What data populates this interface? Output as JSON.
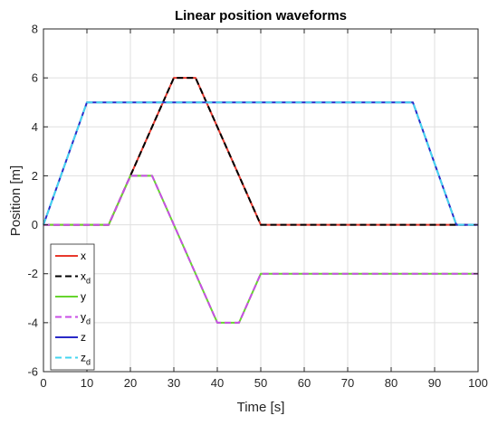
{
  "chart_data": {
    "type": "line",
    "title": "Linear position waveforms",
    "xlabel": "Time [s]",
    "ylabel": "Position [m]",
    "xlim": [
      0,
      100
    ],
    "ylim": [
      -6,
      8
    ],
    "xticks": [
      0,
      10,
      20,
      30,
      40,
      50,
      60,
      70,
      80,
      90,
      100
    ],
    "yticks": [
      -6,
      -4,
      -2,
      0,
      2,
      4,
      6,
      8
    ],
    "grid": true,
    "legend_position": "bottom-left",
    "series": [
      {
        "name": "x",
        "color": "#e8382c",
        "dash": "solid",
        "x": [
          0,
          15,
          20,
          30,
          35,
          50,
          100
        ],
        "y": [
          0,
          0,
          2,
          6,
          6,
          0,
          0
        ]
      },
      {
        "name": "x",
        "subscript": "d",
        "color": "#000000",
        "dash": "dashed",
        "x": [
          0,
          15,
          20,
          30,
          35,
          50,
          100
        ],
        "y": [
          0,
          0,
          2,
          6,
          6,
          0,
          0
        ]
      },
      {
        "name": "y",
        "color": "#66d42e",
        "dash": "solid",
        "x": [
          0,
          15,
          20,
          25,
          40,
          45,
          50,
          100
        ],
        "y": [
          0,
          0,
          2,
          2,
          -4,
          -4,
          -2,
          -2
        ]
      },
      {
        "name": "y",
        "subscript": "d",
        "color": "#c84ee6",
        "dash": "dashed",
        "x": [
          0,
          15,
          20,
          25,
          40,
          45,
          50,
          100
        ],
        "y": [
          0,
          0,
          2,
          2,
          -4,
          -4,
          -2,
          -2
        ]
      },
      {
        "name": "z",
        "color": "#2929c7",
        "dash": "solid",
        "x": [
          0,
          10,
          85,
          95,
          100
        ],
        "y": [
          0,
          5,
          5,
          0,
          0
        ]
      },
      {
        "name": "z",
        "subscript": "d",
        "color": "#44d5f0",
        "dash": "dashed",
        "x": [
          0,
          10,
          85,
          95,
          100
        ],
        "y": [
          0,
          5,
          5,
          0,
          0
        ]
      }
    ]
  }
}
